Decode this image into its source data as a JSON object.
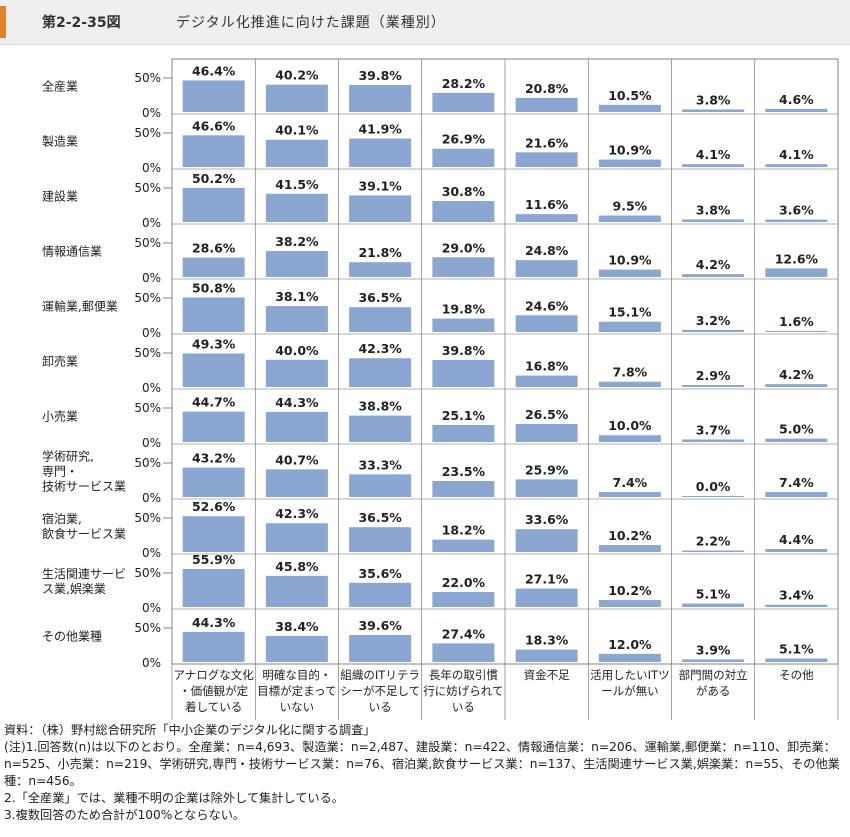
{
  "header": {
    "figure_number": "第2-2-35図",
    "title": "デジタル化推進に向けた課題（業種別）"
  },
  "colors": {
    "bar": "#8aa6d1",
    "accent": "#e0812b",
    "grid": "#666666"
  },
  "chart_data": {
    "type": "bar",
    "layout": "small-multiples",
    "axis_tick_labels": [
      "50%",
      "0%"
    ],
    "ylim": [
      0,
      100
    ],
    "categories": [
      [
        "アナログな文化",
        "・価値観が定",
        "着している"
      ],
      [
        "明確な目的・",
        "目標が定まって",
        "いない"
      ],
      [
        "組織のITリテラ",
        "シーが不足して",
        "いる"
      ],
      [
        "長年の取引慣",
        "行に妨げられて",
        "いる"
      ],
      [
        "資金不足"
      ],
      [
        "活用したいITツ",
        "ールが無い"
      ],
      [
        "部門間の対立",
        "がある"
      ],
      [
        "その他"
      ]
    ],
    "series": [
      {
        "name": [
          "全産業"
        ],
        "values": [
          46.4,
          40.2,
          39.8,
          28.2,
          20.8,
          10.5,
          3.8,
          4.6
        ]
      },
      {
        "name": [
          "製造業"
        ],
        "values": [
          46.6,
          40.1,
          41.9,
          26.9,
          21.6,
          10.9,
          4.1,
          4.1
        ]
      },
      {
        "name": [
          "建設業"
        ],
        "values": [
          50.2,
          41.5,
          39.1,
          30.8,
          11.6,
          9.5,
          3.8,
          3.6
        ]
      },
      {
        "name": [
          "情報通信業"
        ],
        "values": [
          28.6,
          38.2,
          21.8,
          29.0,
          24.8,
          10.9,
          4.2,
          12.6
        ]
      },
      {
        "name": [
          "運輸業,郵便業"
        ],
        "values": [
          50.8,
          38.1,
          36.5,
          19.8,
          24.6,
          15.1,
          3.2,
          1.6
        ]
      },
      {
        "name": [
          "卸売業"
        ],
        "values": [
          49.3,
          40.0,
          42.3,
          39.8,
          16.8,
          7.8,
          2.9,
          4.2
        ]
      },
      {
        "name": [
          "小売業"
        ],
        "values": [
          44.7,
          44.3,
          38.8,
          25.1,
          26.5,
          10.0,
          3.7,
          5.0
        ]
      },
      {
        "name": [
          "学術研究,",
          "専門・",
          "技術サービス業"
        ],
        "values": [
          43.2,
          40.7,
          33.3,
          23.5,
          25.9,
          7.4,
          0.0,
          7.4
        ]
      },
      {
        "name": [
          "宿泊業,",
          "飲食サービス業"
        ],
        "values": [
          52.6,
          42.3,
          36.5,
          18.2,
          33.6,
          10.2,
          2.2,
          4.4
        ]
      },
      {
        "name": [
          "生活関連サービ",
          "ス業,娯楽業"
        ],
        "values": [
          55.9,
          45.8,
          35.6,
          22.0,
          27.1,
          10.2,
          5.1,
          3.4
        ]
      },
      {
        "name": [
          "その他業種"
        ],
        "values": [
          44.3,
          38.4,
          39.6,
          27.4,
          18.3,
          12.0,
          3.9,
          5.1
        ]
      }
    ]
  },
  "notes": [
    "資料：（株）野村総合研究所「中小企業のデジタル化に関する調査」",
    "(注)1.回答数(n)は以下のとおり。全産業：n=4,693、製造業：n=2,487、建設業：n=422、情報通信業：n=206、運輸業,郵便業：n=110、卸売業：n=525、小売業：n=219、学術研究,専門・技術サービス業：n=76、宿泊業,飲食サービス業：n=137、生活関連サービス業,娯楽業：n=55、その他業種：n=456。",
    "2.「全産業」では、業種不明の企業は除外して集計している。",
    "3.複数回答のため合計が100%とならない。"
  ]
}
